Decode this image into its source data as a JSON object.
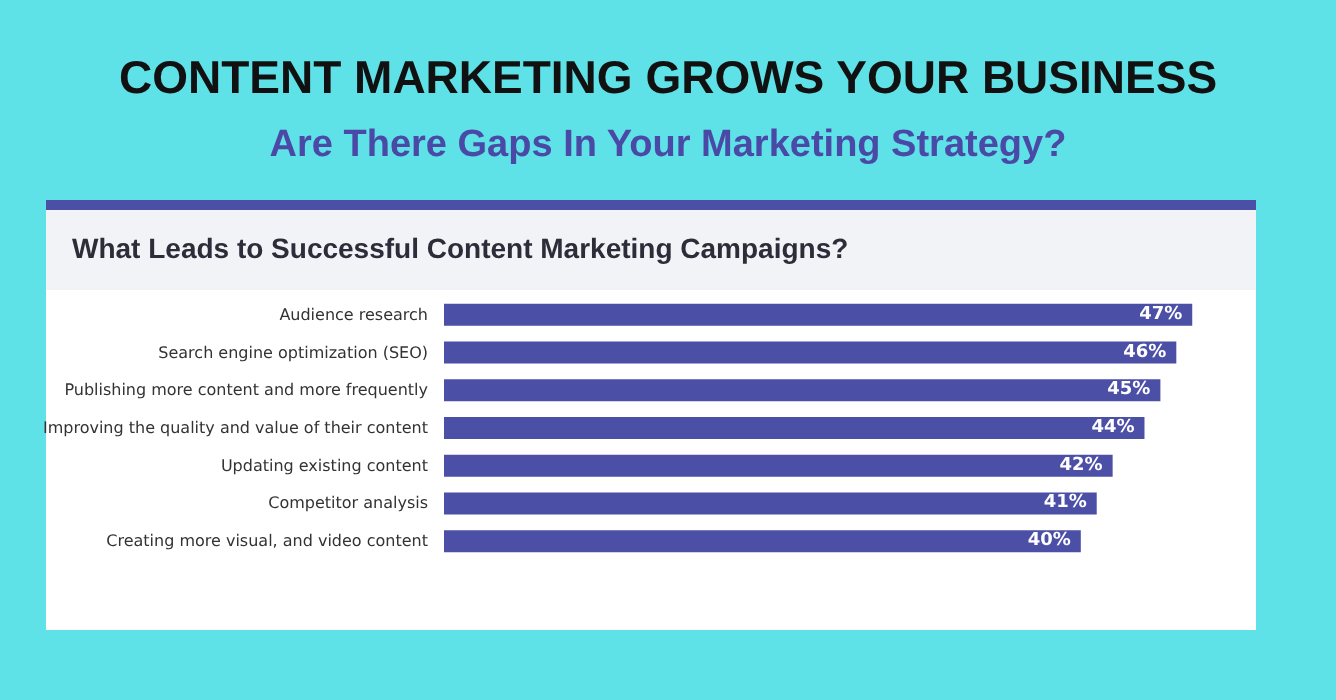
{
  "chart_data": {
    "type": "bar",
    "orientation": "horizontal",
    "title": "CONTENT MARKETING GROWS YOUR BUSINESS",
    "subtitle": "Are There Gaps In Your Marketing Strategy?",
    "annotations": [
      "What Leads to Successful Content Marketing Campaigns?"
    ],
    "categories": [
      "Audience research",
      "Search engine optimization (SEO)",
      "Publishing more content and more frequently",
      "Improving the quality and value of their content",
      "Updating existing content",
      "Competitor analysis",
      "Creating more visual, and video content"
    ],
    "values": [
      47,
      46,
      45,
      44,
      42,
      41,
      40
    ],
    "color": "#4b4fa6",
    "data_labels": true,
    "value_labels": [
      "47%",
      "46%",
      "45%",
      "44%",
      "42%",
      "41%",
      "40%"
    ]
  }
}
